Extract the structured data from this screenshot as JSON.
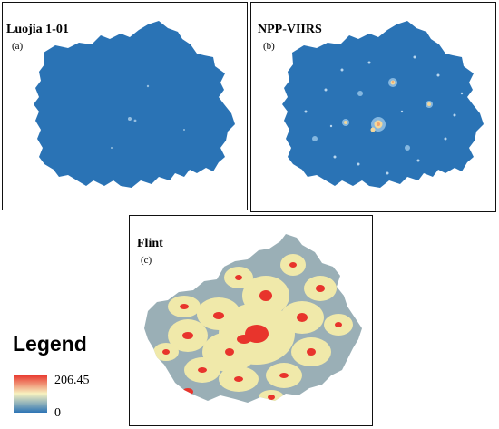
{
  "panels": {
    "a": {
      "title": "Luojia 1-01",
      "label": "(a)"
    },
    "b": {
      "title": "NPP-VIIRS",
      "label": "(b)"
    },
    "c": {
      "title": "Flint",
      "label": "(c)"
    }
  },
  "legend": {
    "title": "Legend",
    "max_label": "206.45",
    "min_label": "0",
    "colors": {
      "high": "#e8322a",
      "mid": "#f7f2c0",
      "low": "#2d74b5"
    }
  },
  "map_colors": {
    "base_blue": "#2a73b5",
    "base_gray": "#9aafb6",
    "glow_yellow": "#f5ecaa",
    "hot_red": "#e8342c",
    "light_blue": "#a8cce8"
  }
}
